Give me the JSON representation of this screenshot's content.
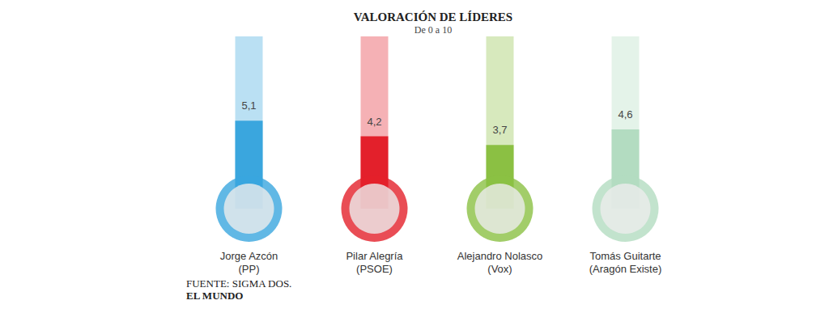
{
  "chart_data": {
    "type": "bar",
    "title": "VALORACIÓN DE LÍDERES",
    "subtitle": "De 0 a 10",
    "categories": [
      "Jorge Azcón\n(PP)",
      "Pilar Alegría\n(PSOE)",
      "Alejandro Nolasco\n(Vox)",
      "Tomás Guitarte\n(Aragón Existe)"
    ],
    "values": [
      5.1,
      4.2,
      3.7,
      4.6
    ],
    "value_labels": [
      "5,1",
      "4,2",
      "3,7",
      "4,6"
    ],
    "colors": [
      "#3aa6de",
      "#e3202b",
      "#8bc043",
      "#b3dcc1"
    ],
    "ylim": [
      0,
      10
    ],
    "yticks": [
      0,
      10
    ],
    "grid": false,
    "tick_labels": false,
    "data_labels": true,
    "annotations": [
      "FUENTE: SIGMA DOS.",
      "EL MUNDO"
    ]
  }
}
